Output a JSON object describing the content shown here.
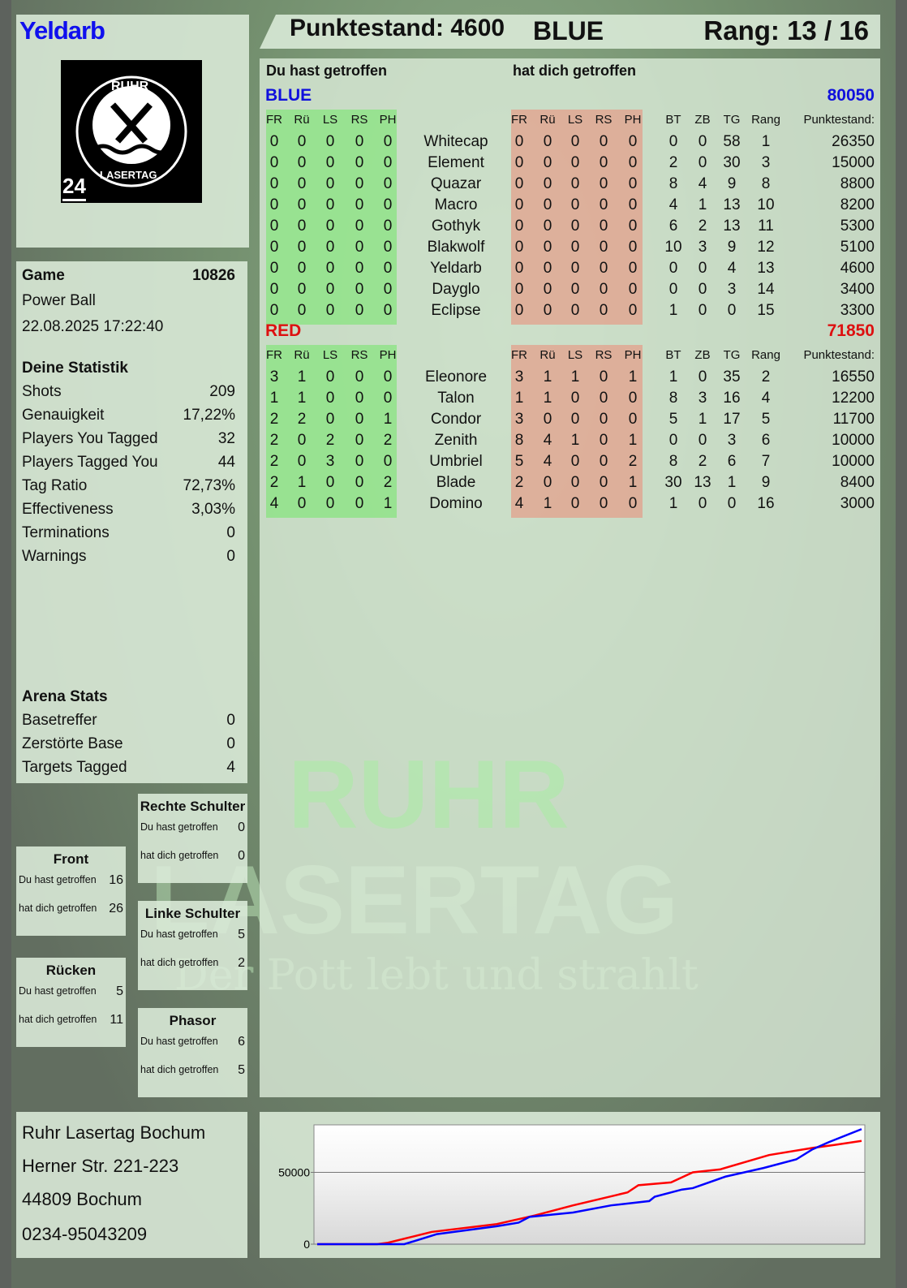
{
  "player": {
    "name": "Yeldarb",
    "score_label": "Punktestand: 4600",
    "team": "BLUE",
    "rank_label": "Rang: 13 / 16"
  },
  "logo": {
    "top": "RUHR",
    "bottom": "LASERTAG",
    "badge": "24"
  },
  "watermark": {
    "line1": "RUHR",
    "line2": "LASERTAG",
    "slogan": "Der Pott lebt und strahlt"
  },
  "table": {
    "you_hit_label": "Du hast getroffen",
    "hit_you_label": "hat dich getroffen",
    "hit_columns": [
      "FR",
      "Rü",
      "LS",
      "RS",
      "PH"
    ],
    "stat_columns": [
      "BT",
      "ZB",
      "TG",
      "Rang",
      "Punktestand:"
    ],
    "teams": [
      {
        "name": "BLUE",
        "total": "80050",
        "color": "#1010dd",
        "players": [
          {
            "you_hit": [
              0,
              0,
              0,
              0,
              0
            ],
            "name": "Whitecap",
            "hit_you": [
              0,
              0,
              0,
              0,
              0
            ],
            "stats": [
              0,
              0,
              58,
              1,
              26350
            ]
          },
          {
            "you_hit": [
              0,
              0,
              0,
              0,
              0
            ],
            "name": "Element",
            "hit_you": [
              0,
              0,
              0,
              0,
              0
            ],
            "stats": [
              2,
              0,
              30,
              3,
              15000
            ]
          },
          {
            "you_hit": [
              0,
              0,
              0,
              0,
              0
            ],
            "name": "Quazar",
            "hit_you": [
              0,
              0,
              0,
              0,
              0
            ],
            "stats": [
              8,
              4,
              9,
              8,
              8800
            ]
          },
          {
            "you_hit": [
              0,
              0,
              0,
              0,
              0
            ],
            "name": "Macro",
            "hit_you": [
              0,
              0,
              0,
              0,
              0
            ],
            "stats": [
              4,
              1,
              13,
              10,
              8200
            ]
          },
          {
            "you_hit": [
              0,
              0,
              0,
              0,
              0
            ],
            "name": "Gothyk",
            "hit_you": [
              0,
              0,
              0,
              0,
              0
            ],
            "stats": [
              6,
              2,
              13,
              11,
              5300
            ]
          },
          {
            "you_hit": [
              0,
              0,
              0,
              0,
              0
            ],
            "name": "Blakwolf",
            "hit_you": [
              0,
              0,
              0,
              0,
              0
            ],
            "stats": [
              10,
              3,
              9,
              12,
              5100
            ]
          },
          {
            "you_hit": [
              0,
              0,
              0,
              0,
              0
            ],
            "name": "Yeldarb",
            "hit_you": [
              0,
              0,
              0,
              0,
              0
            ],
            "stats": [
              0,
              0,
              4,
              13,
              4600
            ]
          },
          {
            "you_hit": [
              0,
              0,
              0,
              0,
              0
            ],
            "name": "Dayglo",
            "hit_you": [
              0,
              0,
              0,
              0,
              0
            ],
            "stats": [
              0,
              0,
              3,
              14,
              3400
            ]
          },
          {
            "you_hit": [
              0,
              0,
              0,
              0,
              0
            ],
            "name": "Eclipse",
            "hit_you": [
              0,
              0,
              0,
              0,
              0
            ],
            "stats": [
              1,
              0,
              0,
              15,
              3300
            ]
          }
        ]
      },
      {
        "name": "RED",
        "total": "71850",
        "color": "#dd1010",
        "players": [
          {
            "you_hit": [
              3,
              1,
              0,
              0,
              0
            ],
            "name": "Eleonore",
            "hit_you": [
              3,
              1,
              1,
              0,
              1
            ],
            "stats": [
              1,
              0,
              35,
              2,
              16550
            ]
          },
          {
            "you_hit": [
              1,
              1,
              0,
              0,
              0
            ],
            "name": "Talon",
            "hit_you": [
              1,
              1,
              0,
              0,
              0
            ],
            "stats": [
              8,
              3,
              16,
              4,
              12200
            ]
          },
          {
            "you_hit": [
              2,
              2,
              0,
              0,
              1
            ],
            "name": "Condor",
            "hit_you": [
              3,
              0,
              0,
              0,
              0
            ],
            "stats": [
              5,
              1,
              17,
              5,
              11700
            ]
          },
          {
            "you_hit": [
              2,
              0,
              2,
              0,
              2
            ],
            "name": "Zenith",
            "hit_you": [
              8,
              4,
              1,
              0,
              1
            ],
            "stats": [
              0,
              0,
              3,
              6,
              10000
            ]
          },
          {
            "you_hit": [
              2,
              0,
              3,
              0,
              0
            ],
            "name": "Umbriel",
            "hit_you": [
              5,
              4,
              0,
              0,
              2
            ],
            "stats": [
              8,
              2,
              6,
              7,
              10000
            ]
          },
          {
            "you_hit": [
              2,
              1,
              0,
              0,
              2
            ],
            "name": "Blade",
            "hit_you": [
              2,
              0,
              0,
              0,
              1
            ],
            "stats": [
              30,
              13,
              1,
              9,
              8400
            ]
          },
          {
            "you_hit": [
              4,
              0,
              0,
              0,
              1
            ],
            "name": "Domino",
            "hit_you": [
              4,
              1,
              0,
              0,
              0
            ],
            "stats": [
              1,
              0,
              0,
              16,
              3000
            ]
          }
        ]
      }
    ]
  },
  "game": {
    "label": "Game",
    "number": "10826",
    "mode": "Power Ball",
    "datetime": "22.08.2025 17:22:40"
  },
  "stats": {
    "title": "Deine Statistik",
    "rows": [
      {
        "label": "Shots",
        "value": "209"
      },
      {
        "label": "Genauigkeit",
        "value": "17,22%"
      },
      {
        "label": "Players You Tagged",
        "value": "32"
      },
      {
        "label": "Players Tagged You",
        "value": "44"
      },
      {
        "label": "Tag Ratio",
        "value": "72,73%"
      },
      {
        "label": "Effectiveness",
        "value": "3,03%"
      },
      {
        "label": "Terminations",
        "value": "0"
      },
      {
        "label": "Warnings",
        "value": "0"
      }
    ]
  },
  "arena": {
    "title": "Arena Stats",
    "rows": [
      {
        "label": "Basetreffer",
        "value": "0"
      },
      {
        "label": "Zerstörte Base",
        "value": "0"
      },
      {
        "label": "Targets Tagged",
        "value": "4"
      }
    ]
  },
  "body_parts": [
    {
      "name": "Rechte Schulter",
      "you_hit_label": "Du hast getroffen",
      "you_hit": "0",
      "hit_you_label": "hat dich getroffen",
      "hit_you": "0"
    },
    {
      "name": "Front",
      "you_hit_label": "Du hast getroffen",
      "you_hit": "16",
      "hit_you_label": "hat dich getroffen",
      "hit_you": "26"
    },
    {
      "name": "Linke Schulter",
      "you_hit_label": "Du hast getroffen",
      "you_hit": "5",
      "hit_you_label": "hat dich getroffen",
      "hit_you": "2"
    },
    {
      "name": "Rücken",
      "you_hit_label": "Du hast getroffen",
      "you_hit": "5",
      "hit_you_label": "hat dich getroffen",
      "hit_you": "11"
    },
    {
      "name": "Phasor",
      "you_hit_label": "Du hast getroffen",
      "you_hit": "6",
      "hit_you_label": "hat dich getroffen",
      "hit_you": "5"
    }
  ],
  "address": [
    "Ruhr Lasertag Bochum",
    "Herner Str. 221-223",
    "44809 Bochum",
    "0234-95043209"
  ],
  "chart_data": {
    "type": "line",
    "title": "",
    "xlabel": "",
    "ylabel": "",
    "ylim": [
      0,
      83000
    ],
    "yticks": [
      "0",
      "50000"
    ],
    "grid": "horizontal at 50000",
    "series": [
      {
        "color": "#ff0000",
        "x": [
          0,
          11,
          13,
          21,
          33,
          40,
          47,
          57,
          59,
          65,
          69,
          74,
          83,
          91,
          95,
          100
        ],
        "y": [
          0,
          0,
          1000,
          8500,
          14000,
          20000,
          27000,
          36000,
          41000,
          43000,
          50000,
          52000,
          62000,
          67000,
          69000,
          71850
        ]
      },
      {
        "color": "#0000ff",
        "x": [
          0,
          16,
          22,
          33,
          37,
          39,
          47,
          54,
          61,
          62,
          67,
          69,
          75,
          82,
          88,
          91,
          94,
          100
        ],
        "y": [
          0,
          0,
          7000,
          12500,
          15000,
          19000,
          22000,
          27000,
          30000,
          33000,
          38000,
          39000,
          47000,
          53000,
          59000,
          66000,
          71000,
          80050
        ]
      }
    ]
  }
}
